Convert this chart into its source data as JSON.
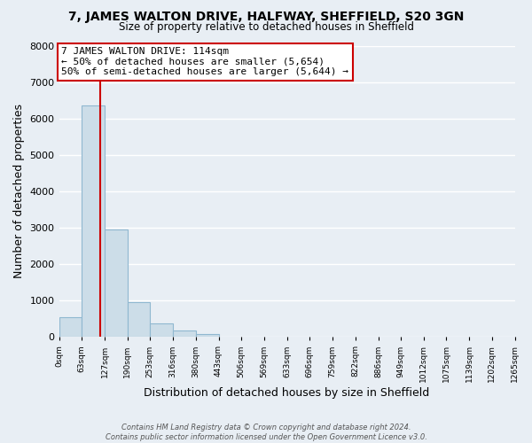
{
  "title": "7, JAMES WALTON DRIVE, HALFWAY, SHEFFIELD, S20 3GN",
  "subtitle": "Size of property relative to detached houses in Sheffield",
  "xlabel": "Distribution of detached houses by size in Sheffield",
  "ylabel": "Number of detached properties",
  "bin_edges": [
    0,
    63,
    127,
    190,
    253,
    316,
    380,
    443,
    506,
    569,
    633,
    696,
    759,
    822,
    886,
    949,
    1012,
    1075,
    1139,
    1202,
    1265
  ],
  "bin_labels": [
    "0sqm",
    "63sqm",
    "127sqm",
    "190sqm",
    "253sqm",
    "316sqm",
    "380sqm",
    "443sqm",
    "506sqm",
    "569sqm",
    "633sqm",
    "696sqm",
    "759sqm",
    "822sqm",
    "886sqm",
    "949sqm",
    "1012sqm",
    "1075sqm",
    "1139sqm",
    "1202sqm",
    "1265sqm"
  ],
  "bar_heights": [
    550,
    6350,
    2950,
    950,
    375,
    175,
    80,
    0,
    0,
    0,
    0,
    0,
    0,
    0,
    0,
    0,
    0,
    0,
    0,
    0
  ],
  "bar_color": "#ccdde8",
  "bar_edgecolor": "#90b8d0",
  "property_line_x": 114,
  "property_line_color": "#cc0000",
  "annotation_line1": "7 JAMES WALTON DRIVE: 114sqm",
  "annotation_line2": "← 50% of detached houses are smaller (5,654)",
  "annotation_line3": "50% of semi-detached houses are larger (5,644) →",
  "annotation_box_color": "#ffffff",
  "annotation_box_edgecolor": "#cc0000",
  "ylim": [
    0,
    8000
  ],
  "yticks": [
    0,
    1000,
    2000,
    3000,
    4000,
    5000,
    6000,
    7000,
    8000
  ],
  "footer_line1": "Contains HM Land Registry data © Crown copyright and database right 2024.",
  "footer_line2": "Contains public sector information licensed under the Open Government Licence v3.0.",
  "background_color": "#e8eef4",
  "plot_background_color": "#e8eef4",
  "grid_color": "#ffffff",
  "title_fontsize": 10,
  "subtitle_fontsize": 8.5
}
